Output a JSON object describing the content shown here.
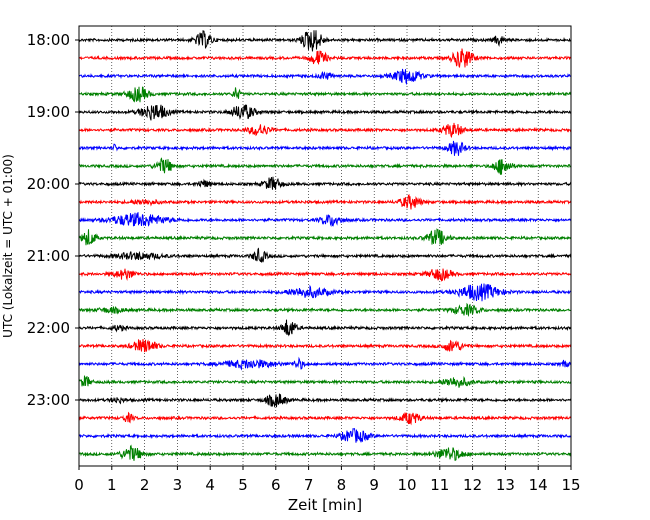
{
  "chart_data": {
    "type": "line",
    "xlabel": "Zeit  [min]",
    "ylabel": "UTC (Lokalzeit = UTC + 01:00)",
    "xlim": [
      0,
      15
    ],
    "x_ticks": [
      "0",
      "1",
      "2",
      "3",
      "4",
      "5",
      "6",
      "7",
      "8",
      "9",
      "10",
      "11",
      "12",
      "13",
      "14",
      "15"
    ],
    "grid": "vertical dotted",
    "traces": [
      {
        "label": "18:00",
        "color": "#000000",
        "events": [
          {
            "t": 3.8,
            "a": 1.0,
            "w": 0.5
          },
          {
            "t": 7.1,
            "a": 1.4,
            "w": 0.6
          },
          {
            "t": 12.8,
            "a": 0.6,
            "w": 0.3
          }
        ]
      },
      {
        "label": "",
        "color": "#ff0000",
        "events": [
          {
            "t": 7.3,
            "a": 0.9,
            "w": 0.5
          },
          {
            "t": 11.7,
            "a": 1.2,
            "w": 0.6
          }
        ]
      },
      {
        "label": "",
        "color": "#0000ff",
        "events": [
          {
            "t": 10.0,
            "a": 0.9,
            "w": 0.8
          },
          {
            "t": 7.5,
            "a": 0.4,
            "w": 0.4
          }
        ]
      },
      {
        "label": "",
        "color": "#008000",
        "events": [
          {
            "t": 1.8,
            "a": 0.9,
            "w": 0.6
          },
          {
            "t": 4.8,
            "a": 0.8,
            "w": 0.2
          }
        ]
      },
      {
        "label": "19:00",
        "color": "#000000",
        "events": [
          {
            "t": 2.3,
            "a": 1.0,
            "w": 0.8
          },
          {
            "t": 5.0,
            "a": 0.9,
            "w": 0.7
          }
        ]
      },
      {
        "label": "",
        "color": "#ff0000",
        "events": [
          {
            "t": 5.5,
            "a": 0.7,
            "w": 0.6
          },
          {
            "t": 11.4,
            "a": 0.8,
            "w": 0.6
          }
        ]
      },
      {
        "label": "",
        "color": "#0000ff",
        "events": [
          {
            "t": 11.5,
            "a": 0.9,
            "w": 0.5
          },
          {
            "t": 1.1,
            "a": 0.5,
            "w": 0.1
          }
        ]
      },
      {
        "label": "",
        "color": "#008000",
        "events": [
          {
            "t": 2.6,
            "a": 0.9,
            "w": 0.5
          },
          {
            "t": 12.9,
            "a": 1.0,
            "w": 0.5
          }
        ]
      },
      {
        "label": "20:00",
        "color": "#000000",
        "events": [
          {
            "t": 5.9,
            "a": 0.8,
            "w": 0.5
          },
          {
            "t": 3.8,
            "a": 0.4,
            "w": 0.4
          }
        ]
      },
      {
        "label": "",
        "color": "#ff0000",
        "events": [
          {
            "t": 10.1,
            "a": 0.8,
            "w": 0.6
          },
          {
            "t": 2.0,
            "a": 0.3,
            "w": 0.8
          }
        ]
      },
      {
        "label": "",
        "color": "#0000ff",
        "events": [
          {
            "t": 1.8,
            "a": 0.8,
            "w": 1.6
          },
          {
            "t": 7.7,
            "a": 0.7,
            "w": 0.6
          }
        ]
      },
      {
        "label": "",
        "color": "#008000",
        "events": [
          {
            "t": 0.3,
            "a": 1.0,
            "w": 0.4
          },
          {
            "t": 10.9,
            "a": 1.0,
            "w": 0.6
          }
        ]
      },
      {
        "label": "21:00",
        "color": "#000000",
        "events": [
          {
            "t": 5.5,
            "a": 0.8,
            "w": 0.4
          },
          {
            "t": 1.8,
            "a": 0.4,
            "w": 1.4
          }
        ]
      },
      {
        "label": "",
        "color": "#ff0000",
        "events": [
          {
            "t": 1.4,
            "a": 0.6,
            "w": 0.6
          },
          {
            "t": 11.0,
            "a": 0.7,
            "w": 0.7
          }
        ]
      },
      {
        "label": "",
        "color": "#0000ff",
        "events": [
          {
            "t": 12.2,
            "a": 1.0,
            "w": 1.2
          },
          {
            "t": 7.0,
            "a": 0.6,
            "w": 1.2
          }
        ]
      },
      {
        "label": "",
        "color": "#008000",
        "events": [
          {
            "t": 11.8,
            "a": 0.6,
            "w": 0.8
          },
          {
            "t": 1.0,
            "a": 0.3,
            "w": 0.8
          }
        ]
      },
      {
        "label": "22:00",
        "color": "#000000",
        "events": [
          {
            "t": 6.4,
            "a": 1.1,
            "w": 0.4
          },
          {
            "t": 1.2,
            "a": 0.3,
            "w": 0.4
          }
        ]
      },
      {
        "label": "",
        "color": "#ff0000",
        "events": [
          {
            "t": 2.0,
            "a": 0.8,
            "w": 0.7
          },
          {
            "t": 11.4,
            "a": 0.7,
            "w": 0.6
          }
        ]
      },
      {
        "label": "",
        "color": "#0000ff",
        "events": [
          {
            "t": 5.2,
            "a": 0.5,
            "w": 1.6
          },
          {
            "t": 6.7,
            "a": 0.6,
            "w": 0.3
          },
          {
            "t": 14.8,
            "a": 0.4,
            "w": 0.2
          }
        ]
      },
      {
        "label": "",
        "color": "#008000",
        "events": [
          {
            "t": 0.2,
            "a": 0.7,
            "w": 0.3
          },
          {
            "t": 11.5,
            "a": 0.6,
            "w": 0.8
          }
        ]
      },
      {
        "label": "23:00",
        "color": "#000000",
        "events": [
          {
            "t": 6.0,
            "a": 0.8,
            "w": 0.6
          },
          {
            "t": 1.2,
            "a": 0.3,
            "w": 0.4
          }
        ]
      },
      {
        "label": "",
        "color": "#ff0000",
        "events": [
          {
            "t": 10.1,
            "a": 0.7,
            "w": 0.6
          },
          {
            "t": 1.5,
            "a": 0.5,
            "w": 0.3
          }
        ]
      },
      {
        "label": "",
        "color": "#0000ff",
        "events": [
          {
            "t": 8.4,
            "a": 0.8,
            "w": 0.8
          }
        ]
      },
      {
        "label": "",
        "color": "#008000",
        "events": [
          {
            "t": 1.6,
            "a": 0.9,
            "w": 0.6
          },
          {
            "t": 11.3,
            "a": 0.8,
            "w": 0.8
          }
        ]
      }
    ]
  }
}
